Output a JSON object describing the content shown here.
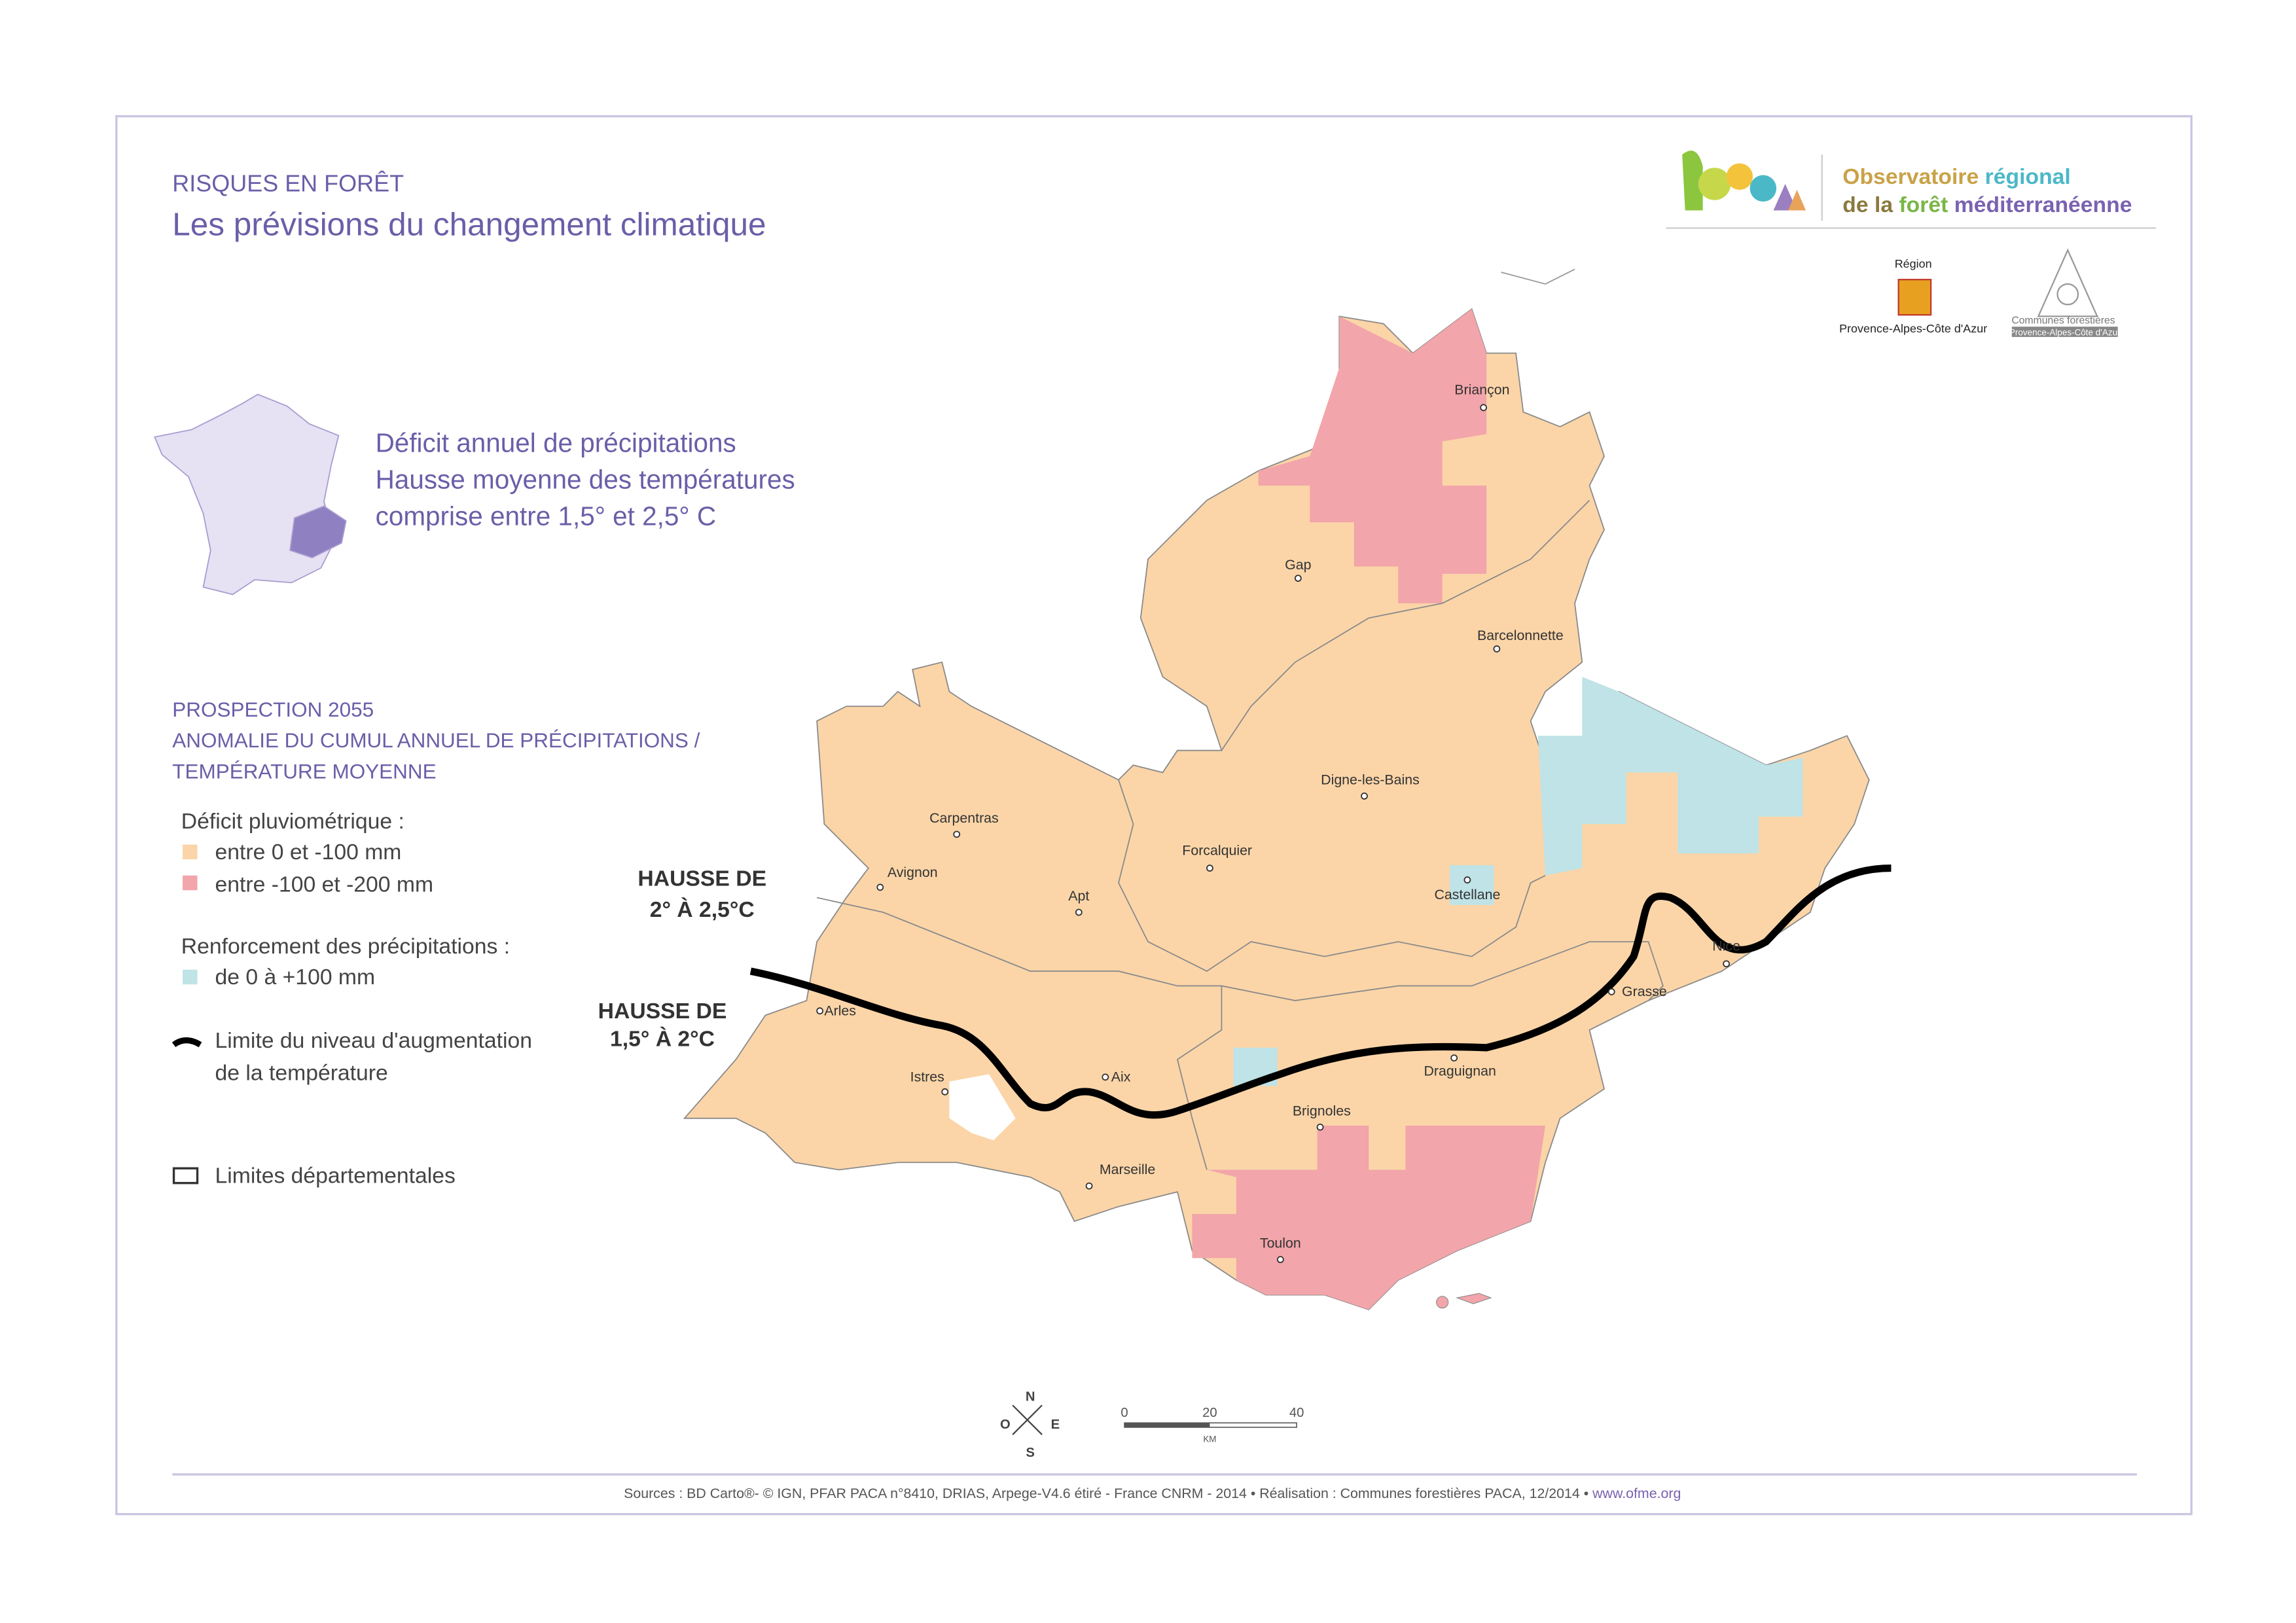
{
  "header": {
    "section": "RISQUES EN FORÊT",
    "title": "Les prévisions du changement climatique"
  },
  "logo": {
    "word1": "Observatoire",
    "word2": "régional",
    "word3": "de la",
    "word4": "forêt",
    "word5": "méditerranéenne"
  },
  "partners": {
    "region_top": "Région",
    "region_name": "Provence-Alpes-Côte d'Azur",
    "communes_name": "Communes forestières",
    "communes_region": "Provence-Alpes-Côte d'Azur"
  },
  "summary": [
    "Déficit annuel de précipitations",
    "Hausse moyenne des températures",
    "comprise entre 1,5° et 2,5° C"
  ],
  "legend": {
    "heading": [
      "PROSPECTION 2055",
      "ANOMALIE DU CUMUL ANNUEL DE PRÉCIPITATIONS /",
      "TEMPÉRATURE MOYENNE"
    ],
    "deficit_title": "Déficit pluviométrique :",
    "deficit_items": [
      "entre 0 et -100 mm",
      "entre -100 et -200 mm"
    ],
    "renfort_title": "Renforcement des précipitations :",
    "renfort_items": [
      "de 0 à +100 mm"
    ],
    "limit": [
      "Limite du niveau d'augmentation",
      "de la température"
    ],
    "departments": "Limites départementales"
  },
  "map": {
    "zone_north": [
      "HAUSSE DE",
      "2° À 2,5°C"
    ],
    "zone_south": [
      "HAUSSE DE",
      "1,5° À 2°C"
    ],
    "cities": [
      {
        "name": "Briançon"
      },
      {
        "name": "Gap"
      },
      {
        "name": "Barcelonnette"
      },
      {
        "name": "Digne-les-Bains"
      },
      {
        "name": "Carpentras"
      },
      {
        "name": "Avignon"
      },
      {
        "name": "Forcalquier"
      },
      {
        "name": "Apt"
      },
      {
        "name": "Castellane"
      },
      {
        "name": "Nice"
      },
      {
        "name": "Grasse"
      },
      {
        "name": "Arles"
      },
      {
        "name": "Aix"
      },
      {
        "name": "Istres"
      },
      {
        "name": "Draguignan"
      },
      {
        "name": "Brignoles"
      },
      {
        "name": "Marseille"
      },
      {
        "name": "Toulon"
      }
    ]
  },
  "compass": {
    "north": "N",
    "east": "E",
    "south": "S",
    "west": "O"
  },
  "scale": {
    "ticks": [
      "0",
      "20",
      "40"
    ],
    "unit": "KM"
  },
  "footer": {
    "sources": "Sources : BD Carto®- © IGN, PFAR PACA n°8410, DRIAS, Arpege-V4.6 étiré - France CNRM - 2014 • Réalisation : Communes forestières PACA, 12/2014 •",
    "url": "www.ofme.org"
  }
}
